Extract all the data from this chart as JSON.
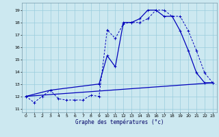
{
  "xlabel": "Graphe des températures (°c)",
  "x_ticks": [
    0,
    1,
    2,
    3,
    4,
    5,
    6,
    7,
    8,
    9,
    10,
    11,
    12,
    13,
    14,
    15,
    16,
    17,
    18,
    19,
    20,
    21,
    22,
    23
  ],
  "y_ticks": [
    11,
    12,
    13,
    14,
    15,
    16,
    17,
    18,
    19
  ],
  "xlim": [
    -0.5,
    23.5
  ],
  "ylim": [
    10.7,
    19.6
  ],
  "bg_color": "#cce8f0",
  "grid_color": "#99ccdd",
  "line_color": "#0000bb",
  "series1_x": [
    0,
    1,
    2,
    3,
    4,
    5,
    6,
    7,
    8,
    9,
    10,
    11,
    12,
    13,
    14,
    15,
    16,
    17,
    18,
    19,
    20,
    21,
    22,
    23
  ],
  "series1_y": [
    12.0,
    11.5,
    12.0,
    12.5,
    11.8,
    11.7,
    11.7,
    11.7,
    12.1,
    12.0,
    17.4,
    16.7,
    17.9,
    18.0,
    18.0,
    18.3,
    19.0,
    19.0,
    18.5,
    18.5,
    17.3,
    15.7,
    13.9,
    13.1
  ],
  "series2_x": [
    0,
    23
  ],
  "series2_y": [
    12.0,
    13.1
  ],
  "series3_x": [
    0,
    3,
    9,
    10,
    11,
    12,
    13,
    14,
    15,
    16,
    17,
    18,
    19,
    20,
    21,
    22,
    23
  ],
  "series3_y": [
    12.0,
    12.5,
    13.0,
    15.3,
    14.4,
    18.0,
    18.0,
    18.3,
    19.0,
    19.0,
    18.5,
    18.5,
    17.3,
    15.7,
    13.9,
    13.1,
    13.1
  ]
}
